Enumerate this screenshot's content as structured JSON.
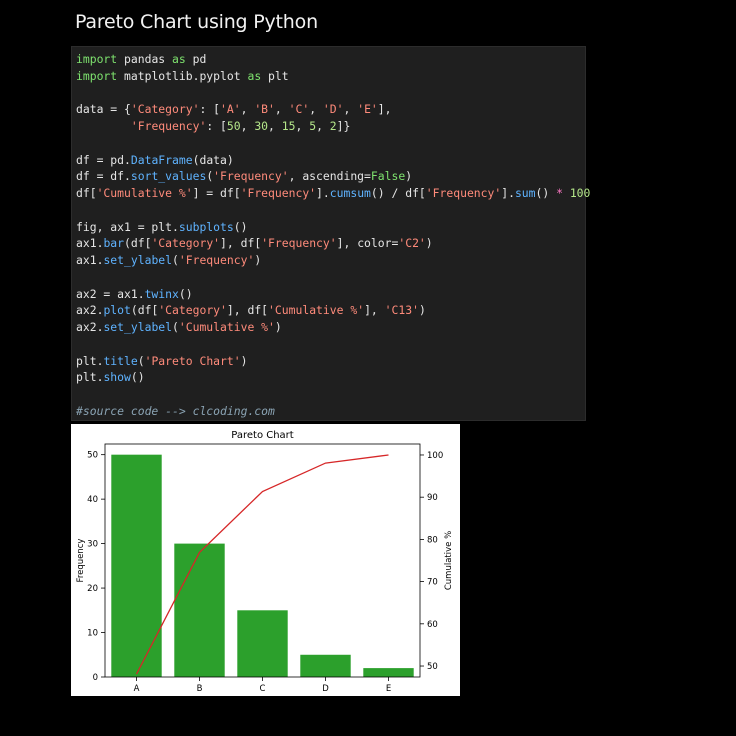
{
  "page": {
    "title": "Pareto Chart using Python"
  },
  "code": {
    "lines": [
      [
        {
          "t": "import",
          "k": "kw"
        },
        {
          "t": " pandas ",
          "k": "plain"
        },
        {
          "t": "as",
          "k": "kw"
        },
        {
          "t": " pd",
          "k": "plain"
        }
      ],
      [
        {
          "t": "import",
          "k": "kw"
        },
        {
          "t": " matplotlib.pyplot ",
          "k": "plain"
        },
        {
          "t": "as",
          "k": "kw"
        },
        {
          "t": " plt",
          "k": "plain"
        }
      ],
      [],
      [
        {
          "t": "data = {",
          "k": "plain"
        },
        {
          "t": "'Category'",
          "k": "str"
        },
        {
          "t": ": [",
          "k": "plain"
        },
        {
          "t": "'A'",
          "k": "str"
        },
        {
          "t": ", ",
          "k": "plain"
        },
        {
          "t": "'B'",
          "k": "str"
        },
        {
          "t": ", ",
          "k": "plain"
        },
        {
          "t": "'C'",
          "k": "str"
        },
        {
          "t": ", ",
          "k": "plain"
        },
        {
          "t": "'D'",
          "k": "str"
        },
        {
          "t": ", ",
          "k": "plain"
        },
        {
          "t": "'E'",
          "k": "str"
        },
        {
          "t": "],",
          "k": "plain"
        }
      ],
      [
        {
          "t": "        ",
          "k": "plain"
        },
        {
          "t": "'Frequency'",
          "k": "str"
        },
        {
          "t": ": [",
          "k": "plain"
        },
        {
          "t": "50",
          "k": "num"
        },
        {
          "t": ", ",
          "k": "plain"
        },
        {
          "t": "30",
          "k": "num"
        },
        {
          "t": ", ",
          "k": "plain"
        },
        {
          "t": "15",
          "k": "num"
        },
        {
          "t": ", ",
          "k": "plain"
        },
        {
          "t": "5",
          "k": "num"
        },
        {
          "t": ", ",
          "k": "plain"
        },
        {
          "t": "2",
          "k": "num"
        },
        {
          "t": "]}",
          "k": "plain"
        }
      ],
      [],
      [
        {
          "t": "df = pd.",
          "k": "plain"
        },
        {
          "t": "DataFrame",
          "k": "fn"
        },
        {
          "t": "(data)",
          "k": "plain"
        }
      ],
      [
        {
          "t": "df = df.",
          "k": "plain"
        },
        {
          "t": "sort_values",
          "k": "fn"
        },
        {
          "t": "(",
          "k": "plain"
        },
        {
          "t": "'Frequency'",
          "k": "str"
        },
        {
          "t": ", ascending=",
          "k": "plain"
        },
        {
          "t": "False",
          "k": "kw"
        },
        {
          "t": ")",
          "k": "plain"
        }
      ],
      [
        {
          "t": "df[",
          "k": "plain"
        },
        {
          "t": "'Cumulative %'",
          "k": "str"
        },
        {
          "t": "] = df[",
          "k": "plain"
        },
        {
          "t": "'Frequency'",
          "k": "str"
        },
        {
          "t": "].",
          "k": "plain"
        },
        {
          "t": "cumsum",
          "k": "fn"
        },
        {
          "t": "() / df[",
          "k": "plain"
        },
        {
          "t": "'Frequency'",
          "k": "str"
        },
        {
          "t": "].",
          "k": "plain"
        },
        {
          "t": "sum",
          "k": "fn"
        },
        {
          "t": "() ",
          "k": "plain"
        },
        {
          "t": "*",
          "k": "op"
        },
        {
          "t": " ",
          "k": "plain"
        },
        {
          "t": "100",
          "k": "num"
        }
      ],
      [],
      [
        {
          "t": "fig, ax1 = plt.",
          "k": "plain"
        },
        {
          "t": "subplots",
          "k": "fn"
        },
        {
          "t": "()",
          "k": "plain"
        }
      ],
      [
        {
          "t": "ax1.",
          "k": "plain"
        },
        {
          "t": "bar",
          "k": "fn"
        },
        {
          "t": "(df[",
          "k": "plain"
        },
        {
          "t": "'Category'",
          "k": "str"
        },
        {
          "t": "], df[",
          "k": "plain"
        },
        {
          "t": "'Frequency'",
          "k": "str"
        },
        {
          "t": "], color=",
          "k": "plain"
        },
        {
          "t": "'C2'",
          "k": "str"
        },
        {
          "t": ")",
          "k": "plain"
        }
      ],
      [
        {
          "t": "ax1.",
          "k": "plain"
        },
        {
          "t": "set_ylabel",
          "k": "fn"
        },
        {
          "t": "(",
          "k": "plain"
        },
        {
          "t": "'Frequency'",
          "k": "str"
        },
        {
          "t": ")",
          "k": "plain"
        }
      ],
      [],
      [
        {
          "t": "ax2 = ax1.",
          "k": "plain"
        },
        {
          "t": "twinx",
          "k": "fn"
        },
        {
          "t": "()",
          "k": "plain"
        }
      ],
      [
        {
          "t": "ax2.",
          "k": "plain"
        },
        {
          "t": "plot",
          "k": "fn"
        },
        {
          "t": "(df[",
          "k": "plain"
        },
        {
          "t": "'Category'",
          "k": "str"
        },
        {
          "t": "], df[",
          "k": "plain"
        },
        {
          "t": "'Cumulative %'",
          "k": "str"
        },
        {
          "t": "], ",
          "k": "plain"
        },
        {
          "t": "'C13'",
          "k": "str"
        },
        {
          "t": ")",
          "k": "plain"
        }
      ],
      [
        {
          "t": "ax2.",
          "k": "plain"
        },
        {
          "t": "set_ylabel",
          "k": "fn"
        },
        {
          "t": "(",
          "k": "plain"
        },
        {
          "t": "'Cumulative %'",
          "k": "str"
        },
        {
          "t": ")",
          "k": "plain"
        }
      ],
      [],
      [
        {
          "t": "plt.",
          "k": "plain"
        },
        {
          "t": "title",
          "k": "fn"
        },
        {
          "t": "(",
          "k": "plain"
        },
        {
          "t": "'Pareto Chart'",
          "k": "str"
        },
        {
          "t": ")",
          "k": "plain"
        }
      ],
      [
        {
          "t": "plt.",
          "k": "plain"
        },
        {
          "t": "show",
          "k": "fn"
        },
        {
          "t": "()",
          "k": "plain"
        }
      ],
      [],
      [
        {
          "t": "#source code --> clcoding.com",
          "k": "com"
        }
      ]
    ]
  },
  "chart_data": {
    "type": "bar",
    "title": "Pareto Chart",
    "categories": [
      "A",
      "B",
      "C",
      "D",
      "E"
    ],
    "series": [
      {
        "name": "Frequency",
        "type": "bar",
        "axis": "left",
        "values": [
          50,
          30,
          15,
          5,
          2
        ]
      },
      {
        "name": "Cumulative %",
        "type": "line",
        "axis": "right",
        "values": [
          48.08,
          76.92,
          91.35,
          98.08,
          100
        ]
      }
    ],
    "xlabel": "",
    "ylabel": "Frequency",
    "ylabel_right": "Cumulative %",
    "ylim": [
      0,
      52.4
    ],
    "ylim_right": [
      47.4,
      102.6
    ],
    "yticks": [
      0,
      10,
      20,
      30,
      40,
      50
    ],
    "yticks_right": [
      50,
      60,
      70,
      80,
      90,
      100
    ],
    "colors": {
      "bar": "#2ca02c",
      "line": "#d62728"
    },
    "grid": false
  }
}
